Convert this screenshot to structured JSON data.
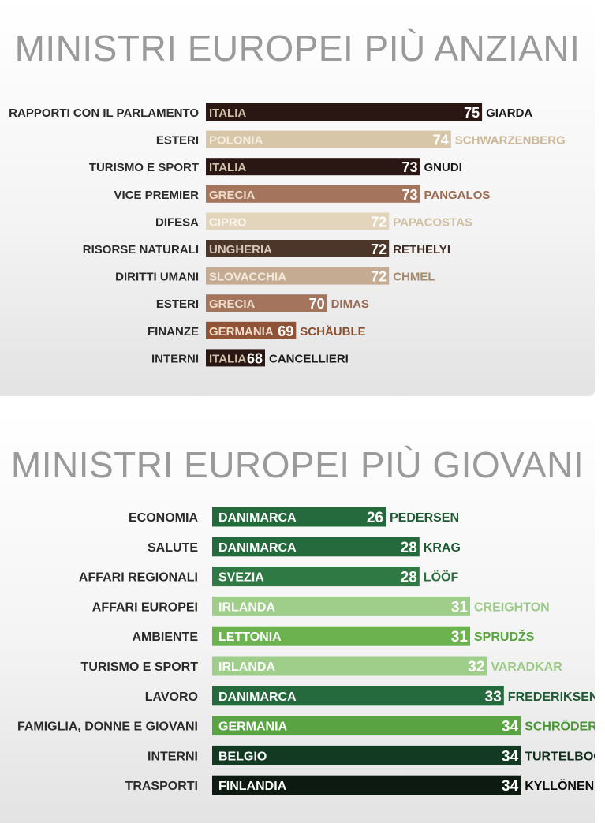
{
  "charts": {
    "oldest": {
      "title": "MINISTRI EUROPEI PIÙ ANZIANI",
      "chart_data": {
        "type": "bar",
        "orientation": "horizontal",
        "title": "MINISTRI EUROPEI PIÙ ANZIANI",
        "value_axis_range": [
          0,
          75
        ],
        "categories": [
          "RAPPORTI CON IL PARLAMENTO",
          "ESTERI",
          "TURISMO E SPORT",
          "VICE PREMIER",
          "DIFESA",
          "RISORSE NATURALI",
          "DIRITTI UMANI",
          "ESTERI",
          "FINANZE",
          "INTERNI"
        ],
        "countries": [
          "ITALIA",
          "POLONIA",
          "ITALIA",
          "GRECIA",
          "CIPRO",
          "UNGHERIA",
          "SLOVACCHIA",
          "GRECIA",
          "GERMANIA",
          "ITALIA"
        ],
        "values": [
          75,
          74,
          73,
          73,
          72,
          72,
          72,
          70,
          69,
          68
        ],
        "names": [
          "GIARDA",
          "SCHWARZENBERG",
          "GNUDI",
          "PANGALOS",
          "PAPACOSTAS",
          "RETHELYI",
          "CHMEL",
          "DIMAS",
          "SCHÄUBLE",
          "CANCELLIERI"
        ],
        "colors": [
          "#2a1713",
          "#d8c6a8",
          "#2a1713",
          "#a4745c",
          "#e3d5bb",
          "#4c3529",
          "#c5ab92",
          "#a4745c",
          "#8f5437",
          "#2a1713"
        ],
        "name_colors": [
          "#1a1a1a",
          "#cbb898",
          "#1a1a1a",
          "#9a6a50",
          "#d0c0a2",
          "#3e2a20",
          "#a68a6e",
          "#9a6a50",
          "#8a4f31",
          "#1a1a1a"
        ],
        "country_colors": [
          "#d0c0a8",
          "#f4ede0",
          "#d0c0a8",
          "#ecdccc",
          "#faf6ee",
          "#d8c8b8",
          "#f2e8dc",
          "#ecdccc",
          "#f2dccc",
          "#d0c0a8"
        ]
      }
    },
    "youngest": {
      "title": "MINISTRI EUROPEI PIÙ GIOVANI",
      "chart_data": {
        "type": "bar",
        "orientation": "horizontal",
        "title": "MINISTRI EUROPEI PIÙ GIOVANI",
        "value_axis_range": [
          0,
          34
        ],
        "categories": [
          "ECONOMIA",
          "SALUTE",
          "AFFARI REGIONALI",
          "AFFARI EUROPEI",
          "AMBIENTE",
          "TURISMO E SPORT",
          "LAVORO",
          "FAMIGLIA, DONNE E GIOVANI",
          "INTERNI",
          "TRASPORTI"
        ],
        "countries": [
          "DANIMARCA",
          "DANIMARCA",
          "SVEZIA",
          "IRLANDA",
          "LETTONIA",
          "IRLANDA",
          "DANIMARCA",
          "GERMANIA",
          "BELGIO",
          "FINLANDIA"
        ],
        "values": [
          26,
          28,
          28,
          31,
          31,
          32,
          33,
          34,
          34,
          34
        ],
        "names": [
          "PEDERSEN",
          "KRAG",
          "LÖÖF",
          "CREIGHTON",
          "SPRUDŽS",
          "VARADKAR",
          "FREDERIKSEN",
          "SCHRÖDER",
          "TURTELBOOM",
          "KYLLÖNEN"
        ],
        "colors": [
          "#246a3c",
          "#246a3c",
          "#2f7a44",
          "#9fce8a",
          "#6cb34f",
          "#9fce8a",
          "#246a3c",
          "#5aa343",
          "#123a22",
          "#0c1a12"
        ],
        "name_colors": [
          "#1e5a32",
          "#1e5a32",
          "#2b6e3c",
          "#9ccb88",
          "#5aa343",
          "#9ccb88",
          "#1e5a32",
          "#4a9436",
          "#0f2e1b",
          "#0a0a0a"
        ],
        "country_colors": [
          "#ffffff",
          "#ffffff",
          "#ffffff",
          "#ffffff",
          "#ffffff",
          "#ffffff",
          "#ffffff",
          "#ffffff",
          "#ffffff",
          "#ffffff"
        ]
      }
    }
  }
}
